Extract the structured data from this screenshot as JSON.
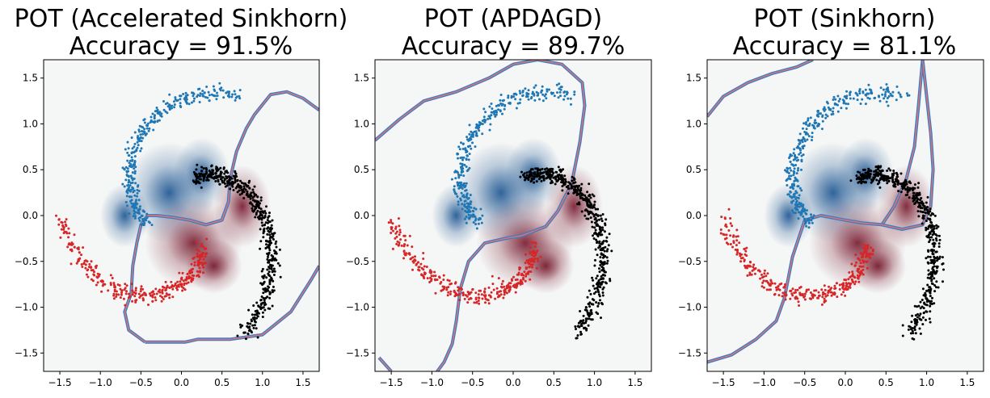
{
  "figure": {
    "colors": {
      "class_blue": "#1f77b4",
      "class_red": "#d62728",
      "unlabeled": "#000000",
      "background": "#f5f6f6",
      "blue_field": "#0d4a8a",
      "red_field": "#6e0a1f",
      "boundary_red": "#e8707a",
      "boundary_blue": "#3a7fbf"
    }
  },
  "chart_data": [
    {
      "type": "scatter",
      "title_line1": "POT (Accelerated Sinkhorn)",
      "title_line2": "Accuracy = 91.5%",
      "accuracy_percent": 91.5,
      "xlim": [
        -1.7,
        1.7
      ],
      "ylim": [
        -1.7,
        1.7
      ],
      "xticks": [
        "−1.5",
        "−1.0",
        "−0.5",
        "0.0",
        "0.5",
        "1.0",
        "1.5"
      ],
      "xtick_values": [
        -1.5,
        -1.0,
        -0.5,
        0.0,
        0.5,
        1.0,
        1.5
      ],
      "yticks": [
        "−1.5",
        "−1.0",
        "−0.5",
        "0.0",
        "0.5",
        "1.0",
        "1.5"
      ],
      "ytick_values": [
        -1.5,
        -1.0,
        -0.5,
        0.0,
        0.5,
        1.0,
        1.5
      ],
      "series": [
        {
          "name": "blue spiral arm",
          "color": "#1f77b4",
          "arm_angle_deg": 210
        },
        {
          "name": "red spiral arm",
          "color": "#d62728",
          "arm_angle_deg": -30
        },
        {
          "name": "unlabeled spiral arm",
          "color": "#000000",
          "arm_angle_deg": 90
        }
      ],
      "boundaries": [
        [
          [
            -0.45,
            -1.38
          ],
          [
            0.05,
            -1.38
          ],
          [
            0.2,
            -1.35
          ],
          [
            0.6,
            -1.35
          ],
          [
            1.0,
            -1.3
          ],
          [
            1.35,
            -1.05
          ],
          [
            1.6,
            -0.7
          ],
          [
            1.7,
            -0.55
          ]
        ],
        [
          [
            -0.45,
            -1.38
          ],
          [
            -0.65,
            -1.25
          ],
          [
            -0.7,
            -1.05
          ],
          [
            -0.62,
            -0.85
          ],
          [
            -0.6,
            -0.55
          ],
          [
            -0.55,
            -0.3
          ],
          [
            -0.5,
            -0.1
          ],
          [
            -0.42,
            0.0
          ],
          [
            -0.3,
            0.0
          ],
          [
            -0.1,
            -0.02
          ],
          [
            0.1,
            -0.05
          ],
          [
            0.3,
            -0.1
          ],
          [
            0.5,
            -0.05
          ],
          [
            0.58,
            0.15
          ],
          [
            0.6,
            0.4
          ],
          [
            0.68,
            0.7
          ],
          [
            0.8,
            0.95
          ],
          [
            0.9,
            1.1
          ],
          [
            1.1,
            1.32
          ],
          [
            1.3,
            1.35
          ],
          [
            1.5,
            1.28
          ],
          [
            1.7,
            1.15
          ]
        ]
      ]
    },
    {
      "type": "scatter",
      "title_line1": "POT (APDAGD)",
      "title_line2": "Accuracy = 89.7%",
      "accuracy_percent": 89.7,
      "xlim": [
        -1.7,
        1.7
      ],
      "ylim": [
        -1.7,
        1.7
      ],
      "xticks": [
        "−1.5",
        "−1.0",
        "−0.5",
        "0.0",
        "0.5",
        "1.0",
        "1.5"
      ],
      "xtick_values": [
        -1.5,
        -1.0,
        -0.5,
        0.0,
        0.5,
        1.0,
        1.5
      ],
      "yticks": [
        "−1.5",
        "−1.0",
        "−0.5",
        "0.0",
        "0.5",
        "1.0",
        "1.5"
      ],
      "ytick_values": [
        -1.5,
        -1.0,
        -0.5,
        0.0,
        0.5,
        1.0,
        1.5
      ],
      "series": [
        {
          "name": "blue spiral arm",
          "color": "#1f77b4",
          "arm_angle_deg": 210
        },
        {
          "name": "red spiral arm",
          "color": "#d62728",
          "arm_angle_deg": -30
        },
        {
          "name": "unlabeled spiral arm",
          "color": "#000000",
          "arm_angle_deg": 90
        }
      ],
      "boundaries": [
        [
          [
            -1.7,
            0.82
          ],
          [
            -1.4,
            1.05
          ],
          [
            -1.1,
            1.25
          ],
          [
            -0.7,
            1.35
          ],
          [
            -0.3,
            1.5
          ],
          [
            0.0,
            1.65
          ],
          [
            0.3,
            1.7
          ],
          [
            0.6,
            1.65
          ],
          [
            0.85,
            1.45
          ],
          [
            0.88,
            1.2
          ],
          [
            0.82,
            0.8
          ],
          [
            0.72,
            0.35
          ],
          [
            0.55,
            0.05
          ],
          [
            0.4,
            -0.12
          ],
          [
            0.1,
            -0.22
          ],
          [
            -0.1,
            -0.25
          ],
          [
            -0.35,
            -0.3
          ],
          [
            -0.55,
            -0.5
          ],
          [
            -0.65,
            -0.8
          ],
          [
            -0.7,
            -1.15
          ],
          [
            -0.75,
            -1.4
          ],
          [
            -0.85,
            -1.6
          ],
          [
            -0.95,
            -1.72
          ]
        ],
        [
          [
            -1.65,
            -1.55
          ],
          [
            -1.5,
            -1.7
          ]
        ]
      ]
    },
    {
      "type": "scatter",
      "title_line1": "POT (Sinkhorn)",
      "title_line2": "Accuracy = 81.1%",
      "accuracy_percent": 81.1,
      "xlim": [
        -1.7,
        1.7
      ],
      "ylim": [
        -1.7,
        1.7
      ],
      "xticks": [
        "−1.5",
        "−1.0",
        "−0.5",
        "0.0",
        "0.5",
        "1.0",
        "1.5"
      ],
      "xtick_values": [
        -1.5,
        -1.0,
        -0.5,
        0.0,
        0.5,
        1.0,
        1.5
      ],
      "yticks": [
        "−1.5",
        "−1.0",
        "−0.5",
        "0.0",
        "0.5",
        "1.0",
        "1.5"
      ],
      "ytick_values": [
        -1.5,
        -1.0,
        -0.5,
        0.0,
        0.5,
        1.0,
        1.5
      ],
      "series": [
        {
          "name": "blue spiral arm",
          "color": "#1f77b4",
          "arm_angle_deg": 210
        },
        {
          "name": "red spiral arm",
          "color": "#d62728",
          "arm_angle_deg": -30
        },
        {
          "name": "unlabeled spiral arm",
          "color": "#000000",
          "arm_angle_deg": 90
        }
      ],
      "boundaries": [
        [
          [
            -1.7,
            1.08
          ],
          [
            -1.5,
            1.3
          ],
          [
            -1.2,
            1.45
          ],
          [
            -0.9,
            1.55
          ],
          [
            -0.6,
            1.62
          ],
          [
            -0.4,
            1.7
          ]
        ],
        [
          [
            0.95,
            1.7
          ],
          [
            0.9,
            1.2
          ],
          [
            0.85,
            0.75
          ],
          [
            0.75,
            0.4
          ],
          [
            0.6,
            0.1
          ],
          [
            0.45,
            -0.1
          ],
          [
            0.2,
            -0.08
          ],
          [
            0.0,
            -0.05
          ],
          [
            -0.3,
            0.0
          ],
          [
            -0.5,
            -0.05
          ],
          [
            -0.65,
            -0.45
          ],
          [
            -0.75,
            -0.9
          ],
          [
            -0.85,
            -1.15
          ],
          [
            -1.1,
            -1.35
          ],
          [
            -1.4,
            -1.52
          ],
          [
            -1.7,
            -1.6
          ]
        ],
        [
          [
            0.95,
            1.7
          ],
          [
            1.0,
            1.3
          ],
          [
            1.05,
            0.9
          ],
          [
            1.08,
            0.5
          ],
          [
            1.05,
            0.1
          ],
          [
            0.95,
            -0.1
          ],
          [
            0.7,
            -0.15
          ],
          [
            0.45,
            -0.1
          ]
        ]
      ]
    }
  ]
}
